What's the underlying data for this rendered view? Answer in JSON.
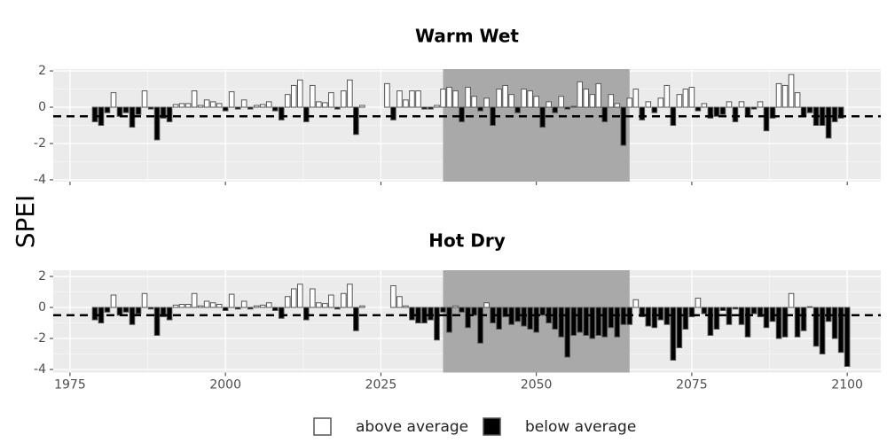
{
  "ylabel": "SPEI",
  "legend": {
    "items": [
      {
        "label": "above average",
        "color": "#ffffff"
      },
      {
        "label": "below average",
        "color": "#000000"
      }
    ]
  },
  "chart_data": [
    {
      "type": "bar",
      "title": "Warm Wet",
      "x": [
        1979,
        1980,
        1981,
        1982,
        1983,
        1984,
        1985,
        1986,
        1987,
        1988,
        1989,
        1990,
        1991,
        1992,
        1993,
        1994,
        1995,
        1996,
        1997,
        1998,
        1999,
        2000,
        2001,
        2002,
        2003,
        2004,
        2005,
        2006,
        2007,
        2008,
        2009,
        2010,
        2011,
        2012,
        2013,
        2014,
        2015,
        2016,
        2017,
        2018,
        2019,
        2020,
        2021,
        2022,
        2026,
        2027,
        2028,
        2029,
        2030,
        2031,
        2032,
        2033,
        2034,
        2035,
        2036,
        2037,
        2038,
        2039,
        2040,
        2041,
        2042,
        2043,
        2044,
        2045,
        2046,
        2047,
        2048,
        2049,
        2050,
        2051,
        2052,
        2053,
        2054,
        2055,
        2056,
        2057,
        2058,
        2059,
        2060,
        2061,
        2062,
        2063,
        2064,
        2065,
        2066,
        2067,
        2068,
        2069,
        2070,
        2071,
        2072,
        2073,
        2074,
        2075,
        2076,
        2077,
        2078,
        2079,
        2080,
        2081,
        2082,
        2083,
        2084,
        2085,
        2086,
        2087,
        2088,
        2089,
        2090,
        2091,
        2092,
        2093,
        2094,
        2095,
        2096,
        2097,
        2098,
        2099
      ],
      "values": [
        -0.8,
        -1.0,
        -0.3,
        0.8,
        -0.5,
        -0.3,
        -1.1,
        -0.4,
        0.9,
        -0.1,
        -1.8,
        -0.6,
        -0.8,
        0.15,
        0.2,
        0.2,
        0.9,
        0.1,
        0.4,
        0.3,
        0.2,
        -0.2,
        0.85,
        -0.1,
        0.4,
        -0.1,
        0.1,
        0.15,
        0.3,
        -0.2,
        -0.7,
        0.7,
        1.2,
        1.5,
        -0.8,
        1.2,
        0.3,
        0.25,
        0.8,
        -0.1,
        0.9,
        1.5,
        -1.5,
        0.1,
        1.3,
        -0.7,
        0.9,
        0.4,
        0.9,
        0.9,
        -0.1,
        -0.1,
        0.1,
        1.0,
        1.1,
        0.9,
        -0.8,
        1.1,
        0.6,
        -0.2,
        0.5,
        -1.0,
        1.0,
        1.2,
        0.7,
        -0.3,
        1.0,
        0.9,
        0.6,
        -1.1,
        0.3,
        -0.3,
        0.6,
        -0.1,
        0.05,
        1.4,
        1.0,
        0.7,
        1.3,
        -0.8,
        0.7,
        0.2,
        -2.1,
        0.5,
        1.0,
        -0.7,
        0.3,
        -0.3,
        0.5,
        1.2,
        -1.0,
        0.7,
        1.0,
        1.1,
        -0.2,
        0.2,
        -0.6,
        -0.5,
        -0.4,
        0.3,
        -0.8,
        0.3,
        -0.5,
        -0.1,
        0.3,
        -1.3,
        -0.6,
        1.3,
        1.2,
        1.8,
        0.8,
        -0.5,
        -0.3,
        -1.0,
        -1.0,
        -1.7,
        -0.8,
        -0.6
      ],
      "xlim": [
        1972.3,
        2105.4
      ],
      "xticks": [
        1975,
        2000,
        2025,
        2050,
        2075,
        2100
      ],
      "show_xtick_labels": false,
      "ylim": [
        -4.1,
        2.1
      ],
      "yticks": [
        2,
        0,
        -2,
        -4
      ],
      "threshold": -0.5,
      "highlight": [
        2035,
        2065
      ],
      "grid": true
    },
    {
      "type": "bar",
      "title": "Hot Dry",
      "x": [
        1979,
        1980,
        1981,
        1982,
        1983,
        1984,
        1985,
        1986,
        1987,
        1988,
        1989,
        1990,
        1991,
        1992,
        1993,
        1994,
        1995,
        1996,
        1997,
        1998,
        1999,
        2000,
        2001,
        2002,
        2003,
        2004,
        2005,
        2006,
        2007,
        2008,
        2009,
        2010,
        2011,
        2012,
        2013,
        2014,
        2015,
        2016,
        2017,
        2018,
        2019,
        2020,
        2021,
        2022,
        2027,
        2028,
        2029,
        2030,
        2031,
        2032,
        2033,
        2034,
        2035,
        2036,
        2037,
        2038,
        2039,
        2040,
        2041,
        2042,
        2043,
        2044,
        2045,
        2046,
        2047,
        2048,
        2049,
        2050,
        2051,
        2052,
        2053,
        2054,
        2055,
        2056,
        2057,
        2058,
        2059,
        2060,
        2061,
        2062,
        2063,
        2064,
        2065,
        2066,
        2067,
        2068,
        2069,
        2070,
        2071,
        2072,
        2073,
        2074,
        2075,
        2076,
        2077,
        2078,
        2079,
        2080,
        2081,
        2082,
        2083,
        2084,
        2085,
        2086,
        2087,
        2088,
        2089,
        2090,
        2091,
        2092,
        2093,
        2094,
        2095,
        2096,
        2097,
        2098,
        2099,
        2100
      ],
      "values": [
        -0.8,
        -1.0,
        -0.3,
        0.8,
        -0.5,
        -0.3,
        -1.1,
        -0.4,
        0.9,
        -0.1,
        -1.8,
        -0.6,
        -0.8,
        0.15,
        0.2,
        0.2,
        0.9,
        0.1,
        0.4,
        0.3,
        0.2,
        -0.2,
        0.85,
        -0.1,
        0.4,
        -0.1,
        0.1,
        0.15,
        0.3,
        -0.2,
        -0.7,
        0.7,
        1.2,
        1.5,
        -0.8,
        1.2,
        0.3,
        0.25,
        0.8,
        -0.1,
        0.9,
        1.5,
        -1.5,
        0.1,
        1.4,
        0.7,
        0.1,
        -0.8,
        -1.0,
        -1.0,
        -0.8,
        -2.1,
        -0.3,
        -1.6,
        0.1,
        -0.3,
        -1.3,
        -0.5,
        -2.3,
        0.3,
        -1.0,
        -1.4,
        -0.6,
        -1.1,
        -0.9,
        -1.2,
        -1.4,
        -1.6,
        -0.5,
        -1.0,
        -1.4,
        -1.9,
        -3.2,
        -1.8,
        -1.6,
        -1.8,
        -2.0,
        -1.8,
        -1.9,
        -1.3,
        -1.9,
        -1.1,
        -1.1,
        0.5,
        -0.6,
        -1.2,
        -1.3,
        -0.8,
        -1.1,
        -3.4,
        -2.6,
        -1.4,
        -0.6,
        0.6,
        -0.4,
        -1.8,
        -1.4,
        -0.2,
        -1.1,
        -0.1,
        -1.1,
        -1.9,
        -0.4,
        -0.6,
        -1.3,
        -0.9,
        -2.0,
        -1.9,
        0.9,
        -1.9,
        -1.5,
        0.05,
        -2.5,
        -3.0,
        -0.9,
        -2.0,
        -2.9,
        -3.8
      ],
      "xlim": [
        1972.3,
        2105.4
      ],
      "xticks": [
        1975,
        2000,
        2025,
        2050,
        2075,
        2100
      ],
      "show_xtick_labels": true,
      "ylim": [
        -4.2,
        2.4
      ],
      "yticks": [
        2,
        0,
        -2,
        -4
      ],
      "threshold": -0.5,
      "highlight": [
        2035,
        2065
      ],
      "grid": true
    }
  ]
}
